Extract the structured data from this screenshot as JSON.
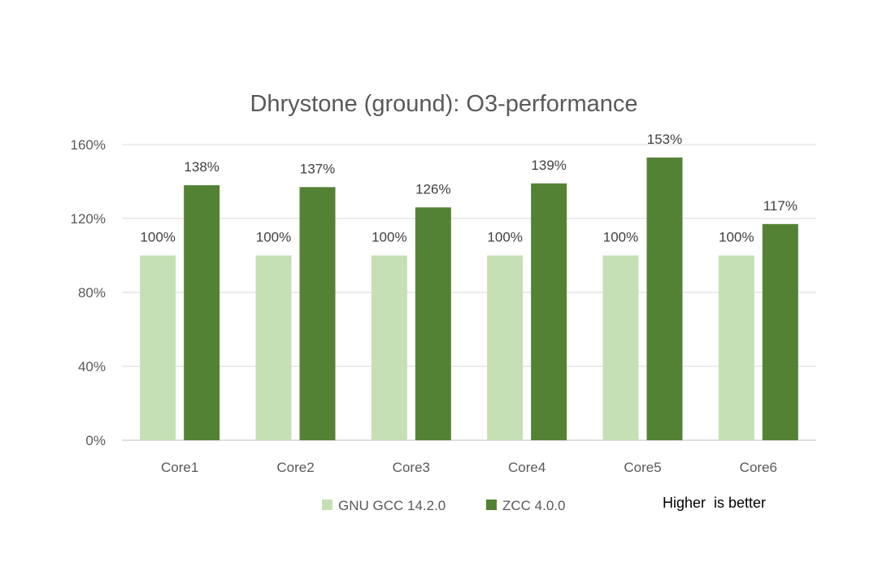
{
  "chart_data": {
    "type": "bar",
    "title": "Dhrystone (ground): O3-performance",
    "categories": [
      "Core1",
      "Core2",
      "Core3",
      "Core4",
      "Core5",
      "Core6"
    ],
    "series": [
      {
        "name": "GNU GCC 14.2.0",
        "color": "#c5e0b4",
        "values": [
          100,
          100,
          100,
          100,
          100,
          100
        ],
        "labels": [
          "100%",
          "100%",
          "100%",
          "100%",
          "100%",
          "100%"
        ]
      },
      {
        "name": "ZCC 4.0.0",
        "color": "#548235",
        "values": [
          138,
          137,
          126,
          139,
          153,
          117
        ],
        "labels": [
          "138%",
          "137%",
          "126%",
          "139%",
          "153%",
          "117%"
        ]
      }
    ],
    "ylim": [
      0,
      160
    ],
    "yticks": [
      0,
      40,
      80,
      120,
      160
    ],
    "ytick_labels": [
      "0%",
      "40%",
      "80%",
      "120%",
      "160%"
    ],
    "grid": true,
    "legend_position": "bottom"
  },
  "note": "Higher  is better"
}
